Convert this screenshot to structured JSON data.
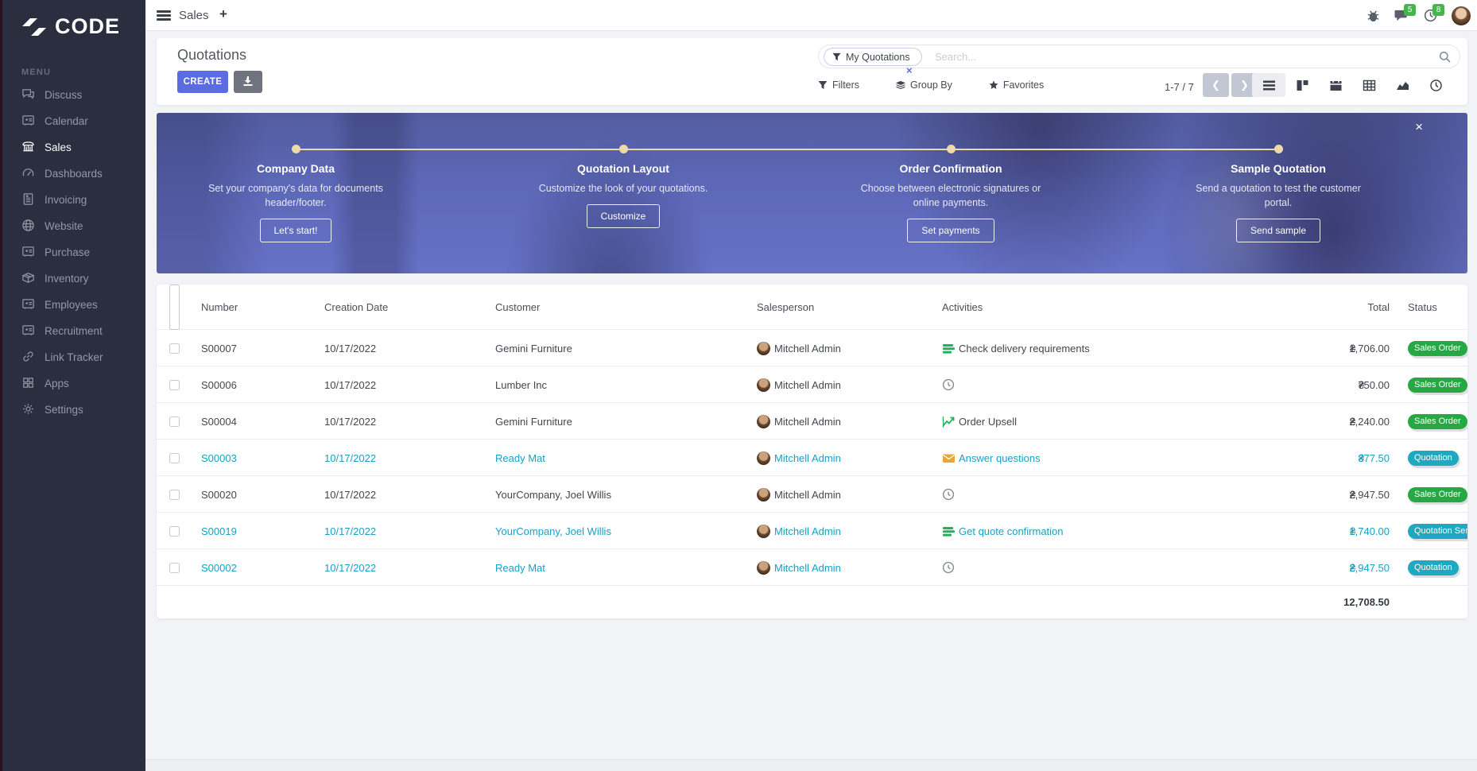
{
  "colors": {
    "accent": "#5b6be0",
    "green": "#28a745",
    "teal": "#20a8c0",
    "blue_row": "#1a9fc4",
    "badge_green": "#45b649"
  },
  "topbar": {
    "app_label": "Sales",
    "plus": "+",
    "message_badge": "5",
    "activity_badge": "8"
  },
  "sidebar": {
    "brand": "CODE",
    "menu_heading": "MENU",
    "items": [
      {
        "label": "Discuss",
        "icon": "chat",
        "active": false
      },
      {
        "label": "Calendar",
        "icon": "monitor",
        "active": false
      },
      {
        "label": "Sales",
        "icon": "shop",
        "active": true
      },
      {
        "label": "Dashboards",
        "icon": "gauge",
        "active": false
      },
      {
        "label": "Invoicing",
        "icon": "invoice",
        "active": false
      },
      {
        "label": "Website",
        "icon": "globe",
        "active": false
      },
      {
        "label": "Purchase",
        "icon": "monitor",
        "active": false
      },
      {
        "label": "Inventory",
        "icon": "box",
        "active": false
      },
      {
        "label": "Employees",
        "icon": "monitor",
        "active": false
      },
      {
        "label": "Recruitment",
        "icon": "monitor",
        "active": false
      },
      {
        "label": "Link Tracker",
        "icon": "link",
        "active": false
      },
      {
        "label": "Apps",
        "icon": "grid",
        "active": false
      },
      {
        "label": "Settings",
        "icon": "gear",
        "active": false
      }
    ]
  },
  "control_panel": {
    "title": "Quotations",
    "create_label": "CREATE",
    "filter_chip": "My Quotations",
    "chip_close": "×",
    "search_placeholder": "Search...",
    "filters_label": "Filters",
    "group_by_label": "Group By",
    "favorites_label": "Favorites",
    "pager": "1-7 / 7"
  },
  "banner": {
    "close": "×",
    "steps": [
      {
        "title": "Company Data",
        "desc": "Set your company's data for documents header/footer.",
        "button": "Let's start!"
      },
      {
        "title": "Quotation Layout",
        "desc": "Customize the look of your quotations.",
        "button": "Customize"
      },
      {
        "title": "Order Confirmation",
        "desc": "Choose between electronic signatures or online payments.",
        "button": "Set payments"
      },
      {
        "title": "Sample Quotation",
        "desc": "Send a quotation to test the customer portal.",
        "button": "Send sample"
      }
    ]
  },
  "table": {
    "columns": {
      "number": "Number",
      "date": "Creation Date",
      "customer": "Customer",
      "salesperson": "Salesperson",
      "activities": "Activities",
      "total": "Total",
      "status": "Status"
    },
    "currency": "₴",
    "footer_total": "12,708.50",
    "rows": [
      {
        "number": "S00007",
        "date": "10/17/2022",
        "customer": "Gemini Furniture",
        "salesperson": "Mitchell Admin",
        "activity_icon": "tasks",
        "activity_label": "Check delivery requirements",
        "total": "1,706.00",
        "status": "Sales Order",
        "status_color": "green",
        "blue": false
      },
      {
        "number": "S00006",
        "date": "10/17/2022",
        "customer": "Lumber Inc",
        "salesperson": "Mitchell Admin",
        "activity_icon": "clock",
        "activity_label": "",
        "total": "750.00",
        "status": "Sales Order",
        "status_color": "green",
        "blue": false
      },
      {
        "number": "S00004",
        "date": "10/17/2022",
        "customer": "Gemini Furniture",
        "salesperson": "Mitchell Admin",
        "activity_icon": "chart",
        "activity_label": "Order Upsell",
        "total": "2,240.00",
        "status": "Sales Order",
        "status_color": "green",
        "blue": false
      },
      {
        "number": "S00003",
        "date": "10/17/2022",
        "customer": "Ready Mat",
        "salesperson": "Mitchell Admin",
        "activity_icon": "mail",
        "activity_label": "Answer questions",
        "total": "377.50",
        "status": "Quotation",
        "status_color": "teal",
        "blue": true
      },
      {
        "number": "S00020",
        "date": "10/17/2022",
        "customer": "YourCompany, Joel Willis",
        "salesperson": "Mitchell Admin",
        "activity_icon": "clock",
        "activity_label": "",
        "total": "2,947.50",
        "status": "Sales Order",
        "status_color": "green",
        "blue": false
      },
      {
        "number": "S00019",
        "date": "10/17/2022",
        "customer": "YourCompany, Joel Willis",
        "salesperson": "Mitchell Admin",
        "activity_icon": "tasks",
        "activity_label": "Get quote confirmation",
        "total": "1,740.00",
        "status": "Quotation Sent",
        "status_color": "teal",
        "blue": true
      },
      {
        "number": "S00002",
        "date": "10/17/2022",
        "customer": "Ready Mat",
        "salesperson": "Mitchell Admin",
        "activity_icon": "clock",
        "activity_label": "",
        "total": "2,947.50",
        "status": "Quotation",
        "status_color": "teal",
        "blue": true
      }
    ]
  }
}
